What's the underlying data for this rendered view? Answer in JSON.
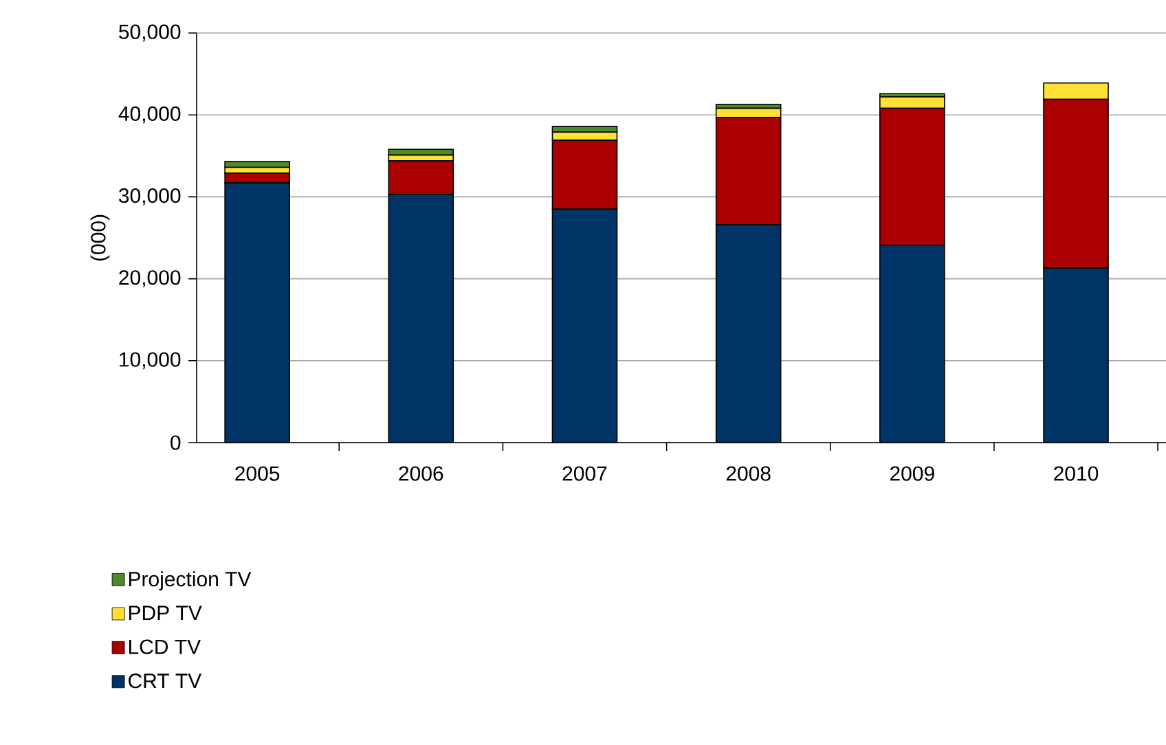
{
  "chart_data": {
    "type": "bar",
    "stacked": true,
    "ylabel": "(000)",
    "categories": [
      "2005",
      "2006",
      "2007",
      "2008",
      "2009",
      "2010"
    ],
    "series": [
      {
        "name": "CRT TV",
        "color": "#003366",
        "values": [
          31700,
          30300,
          28500,
          26600,
          24100,
          21300
        ]
      },
      {
        "name": "LCD TV",
        "color": "#aa0000",
        "values": [
          1200,
          4100,
          8400,
          13100,
          16700,
          20600
        ]
      },
      {
        "name": "PDP TV",
        "color": "#ffe033",
        "values": [
          700,
          700,
          1000,
          1100,
          1400,
          2000
        ]
      },
      {
        "name": "Projection TV",
        "color": "#4f8a2a",
        "values": [
          700,
          700,
          700,
          500,
          400,
          null
        ]
      }
    ],
    "ylim": [
      0,
      50000
    ],
    "yticks": [
      {
        "value": 0,
        "label": "0"
      },
      {
        "value": 10000,
        "label": "10,000"
      },
      {
        "value": 20000,
        "label": "20,000"
      },
      {
        "value": 30000,
        "label": "30,000"
      },
      {
        "value": 40000,
        "label": "40,000"
      },
      {
        "value": 50000,
        "label": "50,000"
      }
    ],
    "grid": "y",
    "legend": "bottom"
  }
}
